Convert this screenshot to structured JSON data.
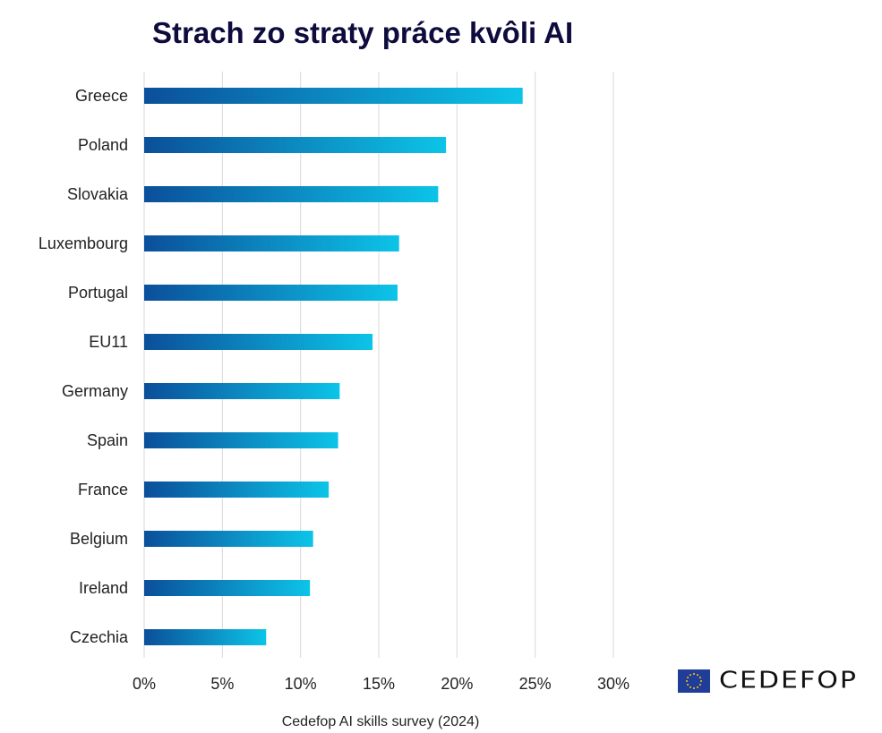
{
  "chart_data": {
    "type": "bar",
    "orientation": "horizontal",
    "title": "Strach zo straty práce kvôli AI",
    "categories": [
      "Greece",
      "Poland",
      "Slovakia",
      "Luxembourg",
      "Portugal",
      "EU11",
      "Germany",
      "Spain",
      "France",
      "Belgium",
      "Ireland",
      "Czechia"
    ],
    "values": [
      24.2,
      19.3,
      18.8,
      16.3,
      16.2,
      14.6,
      12.5,
      12.4,
      11.8,
      10.8,
      10.6,
      7.8
    ],
    "unit": "%",
    "xlim": [
      0,
      30
    ],
    "xticks": [
      "0%",
      "5%",
      "10%",
      "15%",
      "20%",
      "25%",
      "30%"
    ],
    "grid": true,
    "bar_gradient": [
      "#0b4f9a",
      "#0cc4e8"
    ],
    "source": "Cedefop AI skills survey (2024)"
  },
  "logo": {
    "text": "CEDEFOP",
    "flag": "eu-flag"
  }
}
